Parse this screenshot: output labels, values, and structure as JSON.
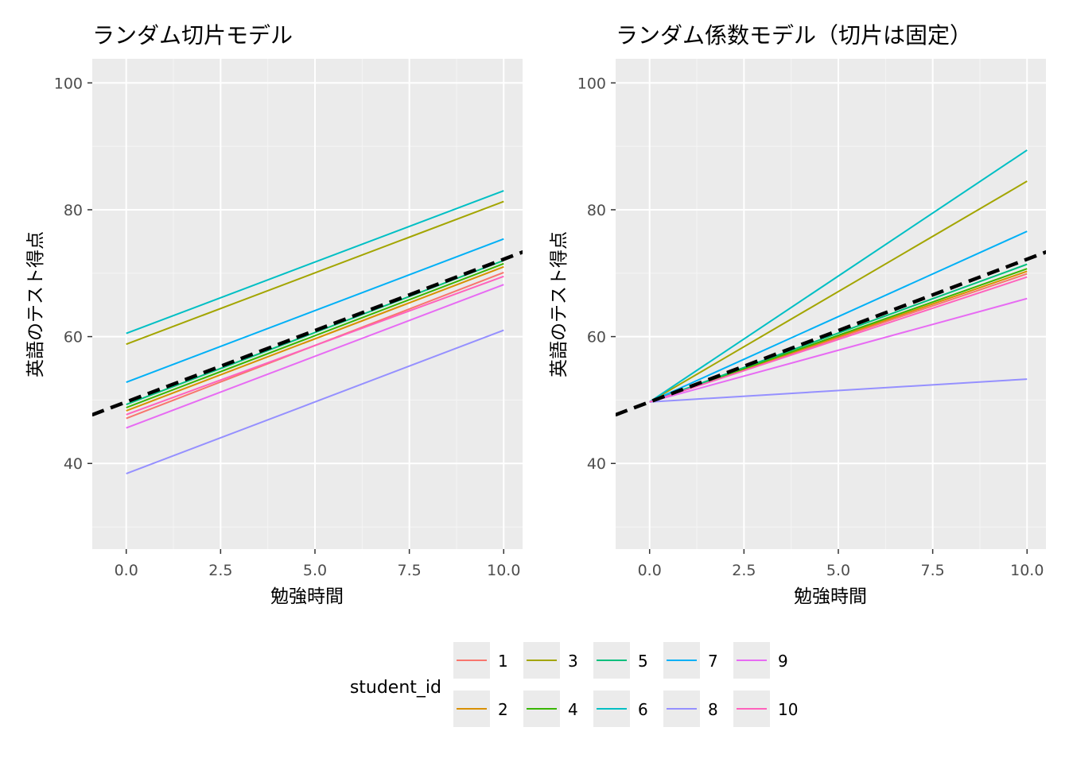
{
  "colors": {
    "panel_bg": "#ebebeb",
    "grid_major": "#ffffff",
    "grid_minor": "#f5f5f5",
    "fixed_line": "#000000"
  },
  "legend": {
    "title": "student_id",
    "entries": [
      {
        "id": "1",
        "color": "#F8766D"
      },
      {
        "id": "2",
        "color": "#D89000"
      },
      {
        "id": "3",
        "color": "#A3A500"
      },
      {
        "id": "4",
        "color": "#39B600"
      },
      {
        "id": "5",
        "color": "#00BF7D"
      },
      {
        "id": "6",
        "color": "#00BFC4"
      },
      {
        "id": "7",
        "color": "#00B0F6"
      },
      {
        "id": "8",
        "color": "#9590FF"
      },
      {
        "id": "9",
        "color": "#E76BF3"
      },
      {
        "id": "10",
        "color": "#FF62BC"
      }
    ]
  },
  "chart_data": [
    {
      "type": "line",
      "title": "ランダム切片モデル",
      "xlabel": "勉強時間",
      "ylabel": "英語のテスト得点",
      "xlim": [
        -0.9,
        10.5
      ],
      "ylim": [
        26.5,
        103.8
      ],
      "xticks": [
        0,
        2.5,
        5,
        7.5,
        10
      ],
      "xtick_labels": [
        "0.0",
        "2.5",
        "5.0",
        "7.5",
        "10.0"
      ],
      "yticks": [
        40,
        60,
        80,
        100
      ],
      "ytick_labels": [
        "40",
        "60",
        "80",
        "100"
      ],
      "fixed_effect": {
        "intercept": 49.7,
        "slope": 2.25,
        "style": "dashed"
      },
      "series": [
        {
          "name": "1",
          "x": [
            0,
            10
          ],
          "y": [
            47.1,
            70.1
          ]
        },
        {
          "name": "2",
          "x": [
            0,
            10
          ],
          "y": [
            48.3,
            71.0
          ]
        },
        {
          "name": "3",
          "x": [
            0,
            10
          ],
          "y": [
            58.8,
            81.3
          ]
        },
        {
          "name": "4",
          "x": [
            0,
            10
          ],
          "y": [
            48.8,
            71.5
          ]
        },
        {
          "name": "5",
          "x": [
            0,
            10
          ],
          "y": [
            49.3,
            72.0
          ]
        },
        {
          "name": "6",
          "x": [
            0,
            10
          ],
          "y": [
            60.5,
            83.0
          ]
        },
        {
          "name": "7",
          "x": [
            0,
            10
          ],
          "y": [
            52.8,
            75.4
          ]
        },
        {
          "name": "8",
          "x": [
            0,
            10
          ],
          "y": [
            38.4,
            61.0
          ]
        },
        {
          "name": "9",
          "x": [
            0,
            10
          ],
          "y": [
            45.6,
            68.2
          ]
        },
        {
          "name": "10",
          "x": [
            0,
            10
          ],
          "y": [
            47.7,
            69.5
          ]
        }
      ]
    },
    {
      "type": "line",
      "title": "ランダム係数モデル（切片は固定）",
      "xlabel": "勉強時間",
      "ylabel": "英語のテスト得点",
      "xlim": [
        -0.9,
        10.5
      ],
      "ylim": [
        26.5,
        103.8
      ],
      "xticks": [
        0,
        2.5,
        5,
        7.5,
        10
      ],
      "xtick_labels": [
        "0.0",
        "2.5",
        "5.0",
        "7.5",
        "10.0"
      ],
      "yticks": [
        40,
        60,
        80,
        100
      ],
      "ytick_labels": [
        "40",
        "60",
        "80",
        "100"
      ],
      "fixed_effect": {
        "intercept": 49.7,
        "slope": 2.25,
        "style": "dashed"
      },
      "series": [
        {
          "name": "1",
          "x": [
            0,
            10
          ],
          "y": [
            49.7,
            69.9
          ]
        },
        {
          "name": "2",
          "x": [
            0,
            10
          ],
          "y": [
            49.7,
            70.3
          ]
        },
        {
          "name": "3",
          "x": [
            0,
            10
          ],
          "y": [
            49.7,
            84.5
          ]
        },
        {
          "name": "4",
          "x": [
            0,
            10
          ],
          "y": [
            49.7,
            70.7
          ]
        },
        {
          "name": "5",
          "x": [
            0,
            10
          ],
          "y": [
            49.7,
            71.4
          ]
        },
        {
          "name": "6",
          "x": [
            0,
            10
          ],
          "y": [
            49.7,
            89.4
          ]
        },
        {
          "name": "7",
          "x": [
            0,
            10
          ],
          "y": [
            49.7,
            76.6
          ]
        },
        {
          "name": "8",
          "x": [
            0,
            10
          ],
          "y": [
            49.7,
            53.3
          ]
        },
        {
          "name": "9",
          "x": [
            0,
            10
          ],
          "y": [
            49.7,
            66.0
          ]
        },
        {
          "name": "10",
          "x": [
            0,
            10
          ],
          "y": [
            49.7,
            69.4
          ]
        }
      ]
    }
  ]
}
